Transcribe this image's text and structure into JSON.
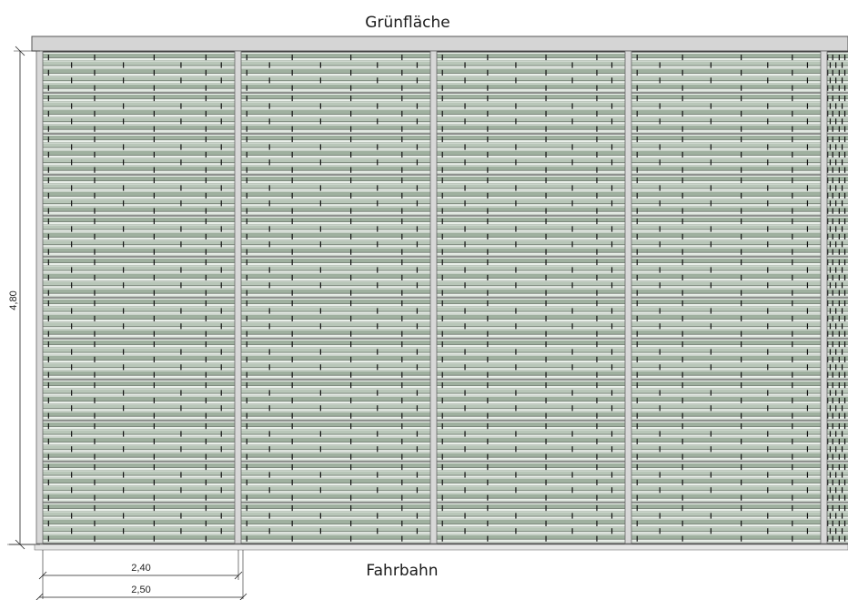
{
  "labels": {
    "top": "Grünfläche",
    "bottom": "Fahrbahn"
  },
  "dimensions": {
    "height": "4,80",
    "panel_inner": "2,40",
    "panel_axis": "2,50"
  },
  "colors": {
    "slat_light": "#e9efe9",
    "slat_green": "#9fb09f",
    "slat_dark": "#4f5a4f",
    "post": "#d8d8d8",
    "cap": "#d5d5d5",
    "line": "#333333"
  }
}
